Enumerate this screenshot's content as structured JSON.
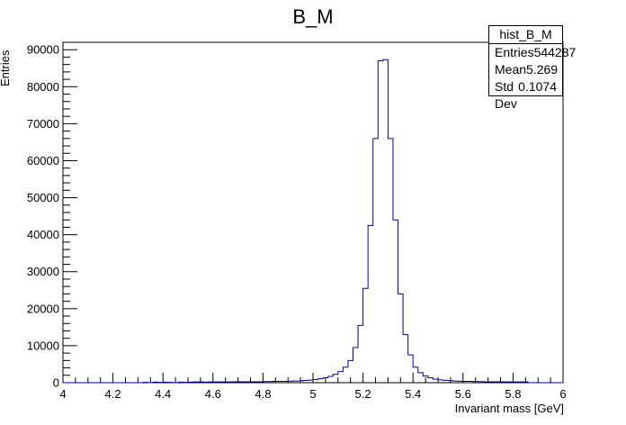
{
  "chart_data": {
    "type": "histogram",
    "title": "B_M",
    "xlabel": "Invariant mass [GeV]",
    "ylabel": "Entries",
    "xlim": [
      4,
      6
    ],
    "ylim": [
      0,
      92000
    ],
    "x_ticks": [
      "4",
      "4.2",
      "4.4",
      "4.6",
      "4.8",
      "5",
      "5.2",
      "5.4",
      "5.6",
      "5.8",
      "6"
    ],
    "y_ticks": [
      "0",
      "10000",
      "20000",
      "30000",
      "40000",
      "50000",
      "60000",
      "70000",
      "80000",
      "90000"
    ],
    "bin_width": 0.02,
    "series": [
      {
        "color": "#000099",
        "x_start": [
          4.0,
          4.02,
          4.04,
          4.06,
          4.08,
          4.1,
          4.12,
          4.14,
          4.16,
          4.18,
          4.2,
          4.22,
          4.24,
          4.26,
          4.28,
          4.3,
          4.32,
          4.34,
          4.36,
          4.38,
          4.4,
          4.42,
          4.44,
          4.46,
          4.48,
          4.5,
          4.52,
          4.54,
          4.56,
          4.58,
          4.6,
          4.62,
          4.64,
          4.66,
          4.68,
          4.7,
          4.72,
          4.74,
          4.76,
          4.78,
          4.8,
          4.82,
          4.84,
          4.86,
          4.88,
          4.9,
          4.92,
          4.94,
          4.96,
          4.98,
          5.0,
          5.02,
          5.04,
          5.06,
          5.08,
          5.1,
          5.12,
          5.14,
          5.16,
          5.18,
          5.2,
          5.22,
          5.24,
          5.26,
          5.28,
          5.3,
          5.32,
          5.34,
          5.36,
          5.38,
          5.4,
          5.42,
          5.44,
          5.46,
          5.48,
          5.5,
          5.52,
          5.54,
          5.56,
          5.58,
          5.6,
          5.62,
          5.64,
          5.66,
          5.68,
          5.7,
          5.72,
          5.74,
          5.76,
          5.78,
          5.8,
          5.82,
          5.84,
          5.86,
          5.88,
          5.9,
          5.92,
          5.94,
          5.96,
          5.98
        ],
        "values": [
          0,
          0,
          0,
          0,
          0,
          0,
          0,
          0,
          0,
          0,
          0,
          0,
          0,
          0,
          0,
          0,
          100,
          0,
          150,
          100,
          150,
          100,
          0,
          150,
          100,
          150,
          200,
          200,
          150,
          200,
          200,
          200,
          200,
          200,
          250,
          250,
          250,
          250,
          250,
          250,
          300,
          300,
          350,
          350,
          350,
          400,
          450,
          500,
          600,
          700,
          850,
          1050,
          1300,
          1700,
          2250,
          3000,
          4200,
          6000,
          9500,
          15500,
          25500,
          42500,
          66000,
          87000,
          87300,
          66000,
          44000,
          24000,
          13000,
          7500,
          4200,
          2700,
          1800,
          1300,
          950,
          750,
          650,
          550,
          450,
          400,
          350,
          350,
          300,
          300,
          250,
          250,
          250,
          250,
          200,
          200,
          200,
          200,
          200,
          0,
          0,
          0,
          0,
          0,
          0,
          0
        ]
      }
    ],
    "stats": {
      "name": "hist_B_M",
      "entries_label": "Entries",
      "entries": "544287",
      "mean_label": "Mean",
      "mean": "5.269",
      "std_label": "Std Dev",
      "std": "0.1074"
    }
  }
}
